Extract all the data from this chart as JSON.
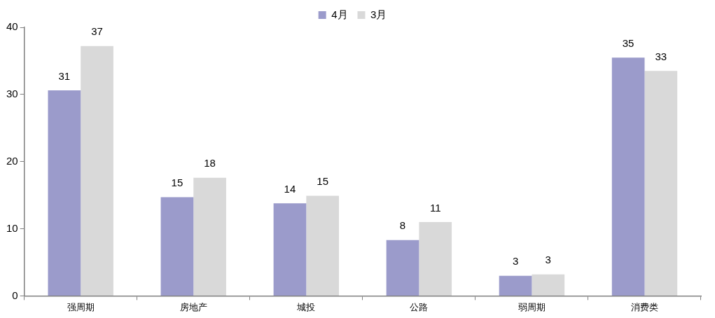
{
  "chart_data": {
    "type": "bar",
    "categories": [
      "强周期",
      "房地产",
      "城投",
      "公路",
      "弱周期",
      "消费类"
    ],
    "series": [
      {
        "name": "4月",
        "color": "#9b9bcb",
        "values": [
          30.6,
          14.7,
          13.8,
          8.3,
          3.0,
          35.5
        ],
        "value_labels": [
          "31",
          "15",
          "14",
          "8",
          "3",
          "35"
        ]
      },
      {
        "name": "3月",
        "color": "#d9d9d9",
        "values": [
          37.2,
          17.6,
          14.9,
          11.0,
          3.2,
          33.5
        ],
        "value_labels": [
          "37",
          "18",
          "15",
          "11",
          "3",
          "33"
        ]
      }
    ],
    "ylim": [
      0,
      40
    ],
    "yticks": [
      0,
      10,
      20,
      30,
      40
    ],
    "grid": false,
    "legend": "top"
  }
}
